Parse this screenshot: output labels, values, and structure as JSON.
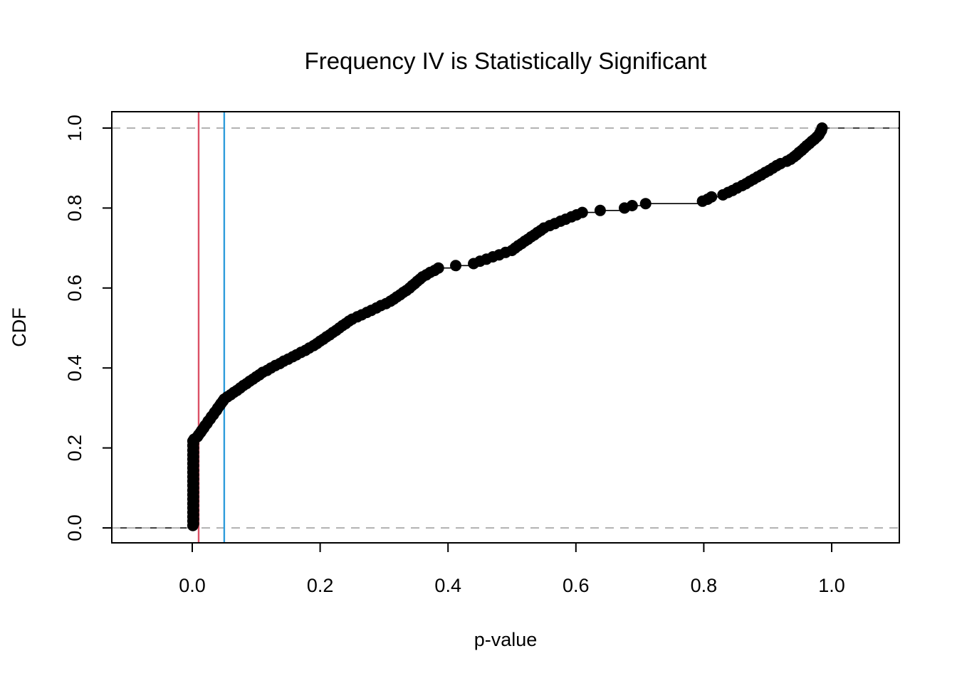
{
  "chart_data": {
    "type": "scatter",
    "subtype": "ecdf-step",
    "title": "Frequency IV is Statistically Significant",
    "xlabel": "p-value",
    "ylabel": "CDF",
    "xlim": [
      -0.126,
      1.106
    ],
    "ylim": [
      -0.037,
      1.041
    ],
    "grid": false,
    "x_ticks": {
      "values": [
        0,
        0.2,
        0.4,
        0.6,
        0.8,
        1
      ],
      "labels": [
        "0.0",
        "0.2",
        "0.4",
        "0.6",
        "0.8",
        "1.0"
      ]
    },
    "y_ticks": {
      "values": [
        0,
        0.2,
        0.4,
        0.6,
        0.8,
        1
      ],
      "labels": [
        "0.0",
        "0.2",
        "0.4",
        "0.6",
        "0.8",
        "1.0"
      ]
    },
    "point_color": "#000000",
    "step_line_color": "#000000",
    "box_color": "#000000",
    "reference_lines": {
      "horizontal_dashed": {
        "values": [
          0,
          1
        ],
        "color": "#B3B3B3"
      },
      "vertical": [
        {
          "x": 0.01,
          "color": "#DB5166"
        },
        {
          "x": 0.05,
          "color": "#2E9CDB"
        }
      ]
    },
    "n_points": 180,
    "points": [
      [
        0.001,
        0.006
      ],
      [
        0.002,
        0.011
      ],
      [
        0.001,
        0.017
      ],
      [
        0.002,
        0.022
      ],
      [
        0.001,
        0.028
      ],
      [
        0.002,
        0.033
      ],
      [
        0.001,
        0.039
      ],
      [
        0.002,
        0.044
      ],
      [
        0.001,
        0.05
      ],
      [
        0.002,
        0.056
      ],
      [
        0.001,
        0.061
      ],
      [
        0.002,
        0.067
      ],
      [
        0.001,
        0.072
      ],
      [
        0.002,
        0.078
      ],
      [
        0.001,
        0.083
      ],
      [
        0.002,
        0.089
      ],
      [
        0.001,
        0.094
      ],
      [
        0.002,
        0.1
      ],
      [
        0.001,
        0.106
      ],
      [
        0.002,
        0.111
      ],
      [
        0.001,
        0.117
      ],
      [
        0.002,
        0.122
      ],
      [
        0.001,
        0.128
      ],
      [
        0.002,
        0.133
      ],
      [
        0.001,
        0.139
      ],
      [
        0.002,
        0.144
      ],
      [
        0.001,
        0.15
      ],
      [
        0.002,
        0.156
      ],
      [
        0.001,
        0.161
      ],
      [
        0.002,
        0.167
      ],
      [
        0.001,
        0.172
      ],
      [
        0.002,
        0.178
      ],
      [
        0.001,
        0.183
      ],
      [
        0.002,
        0.189
      ],
      [
        0.001,
        0.194
      ],
      [
        0.002,
        0.2
      ],
      [
        0.001,
        0.206
      ],
      [
        0.002,
        0.211
      ],
      [
        0.001,
        0.217
      ],
      [
        0.003,
        0.222
      ],
      [
        0.008,
        0.228
      ],
      [
        0.01,
        0.233
      ],
      [
        0.013,
        0.239
      ],
      [
        0.015,
        0.244
      ],
      [
        0.018,
        0.25
      ],
      [
        0.02,
        0.256
      ],
      [
        0.023,
        0.261
      ],
      [
        0.025,
        0.267
      ],
      [
        0.028,
        0.272
      ],
      [
        0.03,
        0.278
      ],
      [
        0.033,
        0.283
      ],
      [
        0.035,
        0.289
      ],
      [
        0.038,
        0.294
      ],
      [
        0.04,
        0.3
      ],
      [
        0.043,
        0.306
      ],
      [
        0.045,
        0.311
      ],
      [
        0.048,
        0.317
      ],
      [
        0.05,
        0.322
      ],
      [
        0.055,
        0.328
      ],
      [
        0.06,
        0.333
      ],
      [
        0.065,
        0.339
      ],
      [
        0.07,
        0.344
      ],
      [
        0.075,
        0.35
      ],
      [
        0.08,
        0.356
      ],
      [
        0.085,
        0.361
      ],
      [
        0.09,
        0.367
      ],
      [
        0.095,
        0.372
      ],
      [
        0.1,
        0.378
      ],
      [
        0.105,
        0.383
      ],
      [
        0.11,
        0.389
      ],
      [
        0.117,
        0.394
      ],
      [
        0.123,
        0.4
      ],
      [
        0.13,
        0.406
      ],
      [
        0.137,
        0.411
      ],
      [
        0.143,
        0.417
      ],
      [
        0.15,
        0.422
      ],
      [
        0.157,
        0.428
      ],
      [
        0.163,
        0.433
      ],
      [
        0.17,
        0.439
      ],
      [
        0.177,
        0.444
      ],
      [
        0.183,
        0.45
      ],
      [
        0.19,
        0.456
      ],
      [
        0.195,
        0.461
      ],
      [
        0.2,
        0.467
      ],
      [
        0.205,
        0.472
      ],
      [
        0.21,
        0.478
      ],
      [
        0.215,
        0.483
      ],
      [
        0.22,
        0.489
      ],
      [
        0.225,
        0.494
      ],
      [
        0.23,
        0.5
      ],
      [
        0.235,
        0.506
      ],
      [
        0.24,
        0.511
      ],
      [
        0.245,
        0.517
      ],
      [
        0.25,
        0.522
      ],
      [
        0.258,
        0.528
      ],
      [
        0.265,
        0.533
      ],
      [
        0.273,
        0.539
      ],
      [
        0.28,
        0.544
      ],
      [
        0.288,
        0.55
      ],
      [
        0.295,
        0.556
      ],
      [
        0.303,
        0.561
      ],
      [
        0.31,
        0.567
      ],
      [
        0.315,
        0.572
      ],
      [
        0.32,
        0.578
      ],
      [
        0.325,
        0.583
      ],
      [
        0.33,
        0.589
      ],
      [
        0.335,
        0.594
      ],
      [
        0.34,
        0.6
      ],
      [
        0.344,
        0.606
      ],
      [
        0.348,
        0.611
      ],
      [
        0.352,
        0.617
      ],
      [
        0.356,
        0.622
      ],
      [
        0.36,
        0.628
      ],
      [
        0.366,
        0.633
      ],
      [
        0.372,
        0.639
      ],
      [
        0.379,
        0.644
      ],
      [
        0.385,
        0.65
      ],
      [
        0.412,
        0.656
      ],
      [
        0.44,
        0.661
      ],
      [
        0.45,
        0.667
      ],
      [
        0.46,
        0.672
      ],
      [
        0.47,
        0.678
      ],
      [
        0.48,
        0.683
      ],
      [
        0.49,
        0.689
      ],
      [
        0.5,
        0.694
      ],
      [
        0.505,
        0.7
      ],
      [
        0.51,
        0.706
      ],
      [
        0.515,
        0.711
      ],
      [
        0.52,
        0.717
      ],
      [
        0.525,
        0.722
      ],
      [
        0.53,
        0.728
      ],
      [
        0.535,
        0.733
      ],
      [
        0.54,
        0.739
      ],
      [
        0.545,
        0.744
      ],
      [
        0.55,
        0.75
      ],
      [
        0.559,
        0.756
      ],
      [
        0.567,
        0.761
      ],
      [
        0.576,
        0.767
      ],
      [
        0.584,
        0.772
      ],
      [
        0.593,
        0.778
      ],
      [
        0.601,
        0.783
      ],
      [
        0.61,
        0.789
      ],
      [
        0.638,
        0.794
      ],
      [
        0.676,
        0.8
      ],
      [
        0.688,
        0.806
      ],
      [
        0.709,
        0.811
      ],
      [
        0.798,
        0.817
      ],
      [
        0.806,
        0.822
      ],
      [
        0.812,
        0.828
      ],
      [
        0.83,
        0.833
      ],
      [
        0.838,
        0.839
      ],
      [
        0.845,
        0.844
      ],
      [
        0.852,
        0.85
      ],
      [
        0.86,
        0.856
      ],
      [
        0.866,
        0.861
      ],
      [
        0.872,
        0.867
      ],
      [
        0.878,
        0.872
      ],
      [
        0.884,
        0.878
      ],
      [
        0.89,
        0.883
      ],
      [
        0.896,
        0.889
      ],
      [
        0.902,
        0.894
      ],
      [
        0.908,
        0.9
      ],
      [
        0.914,
        0.906
      ],
      [
        0.92,
        0.911
      ],
      [
        0.93,
        0.917
      ],
      [
        0.936,
        0.922
      ],
      [
        0.941,
        0.928
      ],
      [
        0.945,
        0.933
      ],
      [
        0.949,
        0.939
      ],
      [
        0.953,
        0.944
      ],
      [
        0.957,
        0.95
      ],
      [
        0.961,
        0.956
      ],
      [
        0.965,
        0.961
      ],
      [
        0.969,
        0.967
      ],
      [
        0.973,
        0.972
      ],
      [
        0.977,
        0.978
      ],
      [
        0.98,
        0.983
      ],
      [
        0.982,
        0.989
      ],
      [
        0.984,
        0.994
      ],
      [
        0.985,
        1.0
      ]
    ]
  }
}
